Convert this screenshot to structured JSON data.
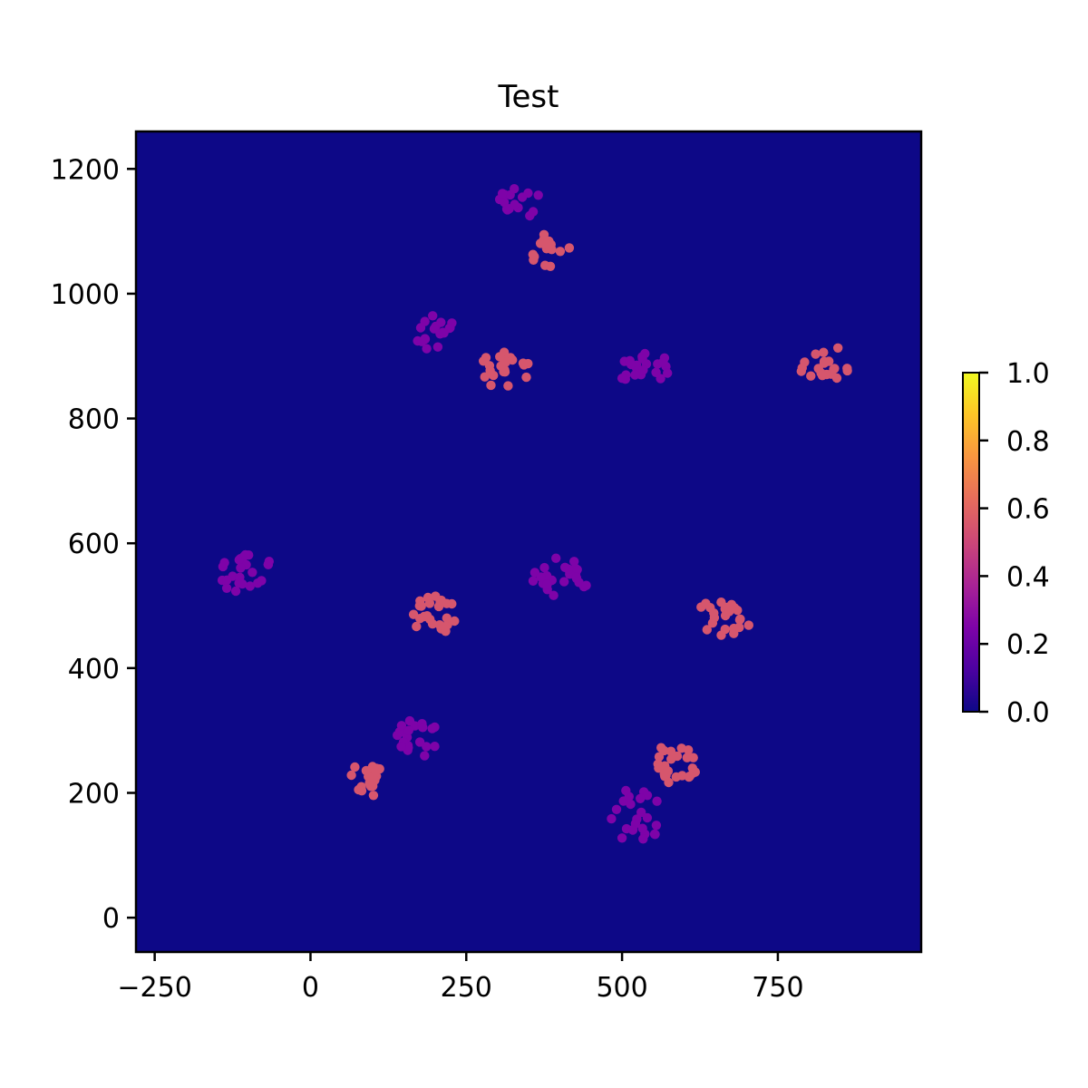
{
  "chart_data": {
    "type": "scatter",
    "title": "Test",
    "xlabel": "",
    "ylabel": "",
    "xlim": [
      -280,
      980
    ],
    "ylim": [
      -55,
      1260
    ],
    "x_ticks": [
      -250,
      0,
      250,
      500,
      750
    ],
    "x_tick_labels": [
      "−250",
      "0",
      "250",
      "500",
      "750"
    ],
    "y_ticks": [
      0,
      200,
      400,
      600,
      800,
      1000,
      1200
    ],
    "y_tick_labels": [
      "0",
      "200",
      "400",
      "600",
      "800",
      "1000",
      "1200"
    ],
    "grid": false,
    "background_color": "#0d0887",
    "colormap": "plasma",
    "colorbar": {
      "range": [
        0,
        1
      ],
      "ticks": [
        0,
        0.2,
        0.4,
        0.6,
        0.8,
        1.0
      ],
      "tick_labels": [
        "0.0",
        "0.2",
        "0.4",
        "0.6",
        "0.8",
        "1.0"
      ]
    },
    "clusters": [
      {
        "center": [
          340,
          1148
        ],
        "spread": [
          40,
          28
        ],
        "count": 16,
        "value": 0.25,
        "seed": 11
      },
      {
        "center": [
          385,
          1068
        ],
        "spread": [
          32,
          30
        ],
        "count": 16,
        "value": 0.55,
        "seed": 12
      },
      {
        "center": [
          205,
          935
        ],
        "spread": [
          38,
          32
        ],
        "count": 18,
        "value": 0.25,
        "seed": 13
      },
      {
        "center": [
          312,
          878
        ],
        "spread": [
          40,
          32
        ],
        "count": 22,
        "value": 0.55,
        "seed": 14
      },
      {
        "center": [
          530,
          880
        ],
        "spread": [
          48,
          30
        ],
        "count": 22,
        "value": 0.25,
        "seed": 15
      },
      {
        "center": [
          828,
          888
        ],
        "spread": [
          50,
          28
        ],
        "count": 20,
        "value": 0.55,
        "seed": 16
      },
      {
        "center": [
          -105,
          550
        ],
        "spread": [
          50,
          35
        ],
        "count": 24,
        "value": 0.25,
        "seed": 17
      },
      {
        "center": [
          200,
          485
        ],
        "spread": [
          40,
          32
        ],
        "count": 24,
        "value": 0.55,
        "seed": 18
      },
      {
        "center": [
          400,
          545
        ],
        "spread": [
          48,
          32
        ],
        "count": 24,
        "value": 0.25,
        "seed": 19
      },
      {
        "center": [
          665,
          482
        ],
        "spread": [
          45,
          32
        ],
        "count": 24,
        "value": 0.55,
        "seed": 20
      },
      {
        "center": [
          172,
          288
        ],
        "spread": [
          35,
          32
        ],
        "count": 22,
        "value": 0.25,
        "seed": 21
      },
      {
        "center": [
          95,
          220
        ],
        "spread": [
          38,
          30
        ],
        "count": 18,
        "value": 0.55,
        "seed": 22
      },
      {
        "center": [
          522,
          162
        ],
        "spread": [
          40,
          48
        ],
        "count": 24,
        "value": 0.25,
        "seed": 23
      },
      {
        "center": [
          582,
          245
        ],
        "spread": [
          40,
          32
        ],
        "count": 26,
        "value": 0.55,
        "seed": 24
      }
    ]
  }
}
